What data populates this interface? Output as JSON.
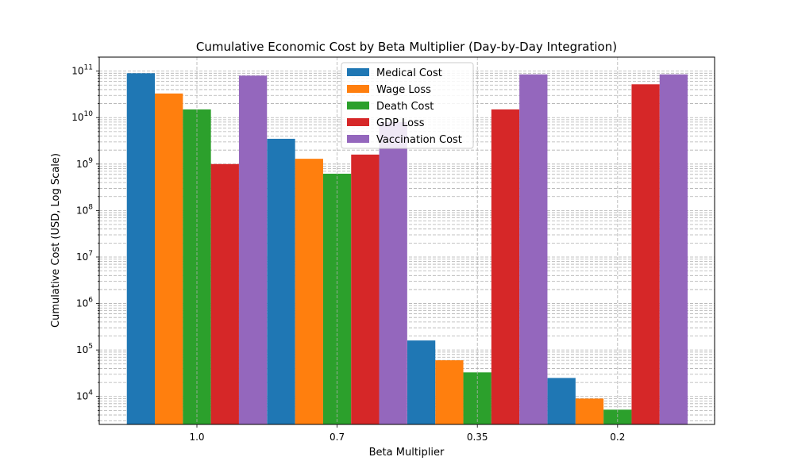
{
  "chart_data": {
    "type": "bar",
    "title": "Cumulative Economic Cost by Beta Multiplier (Day-by-Day Integration)",
    "xlabel": "Beta Multiplier",
    "ylabel": "Cumulative Cost (USD, Log Scale)",
    "yscale": "log",
    "ylim": [
      2500,
      200000000000
    ],
    "categories": [
      "1.0",
      "0.7",
      "0.35",
      "0.2"
    ],
    "grid": "both-major-minor-dashed",
    "legend_position": "top-center",
    "series": [
      {
        "name": "Medical Cost",
        "color": "#1f77b4",
        "values": [
          90000000000,
          3500000000,
          160000,
          25000
        ]
      },
      {
        "name": "Wage Loss",
        "color": "#ff7f0e",
        "values": [
          33000000000,
          1300000000,
          60000,
          9000
        ]
      },
      {
        "name": "Death Cost",
        "color": "#2ca02c",
        "values": [
          15000000000,
          620000000,
          33000,
          5200
        ]
      },
      {
        "name": "GDP Loss",
        "color": "#d62728",
        "values": [
          1000000000,
          1600000000,
          15000000000,
          52000000000
        ]
      },
      {
        "name": "Vaccination Cost",
        "color": "#9467bd",
        "values": [
          80000000000,
          8000000000,
          85000000000,
          85000000000
        ]
      }
    ],
    "yticks": [
      {
        "value": 10000,
        "base": "10",
        "exp": "4"
      },
      {
        "value": 100000,
        "base": "10",
        "exp": "5"
      },
      {
        "value": 1000000,
        "base": "10",
        "exp": "6"
      },
      {
        "value": 10000000,
        "base": "10",
        "exp": "7"
      },
      {
        "value": 100000000,
        "base": "10",
        "exp": "8"
      },
      {
        "value": 1000000000,
        "base": "10",
        "exp": "9"
      },
      {
        "value": 10000000000,
        "base": "10",
        "exp": "10"
      },
      {
        "value": 100000000000,
        "base": "10",
        "exp": "11"
      }
    ]
  }
}
